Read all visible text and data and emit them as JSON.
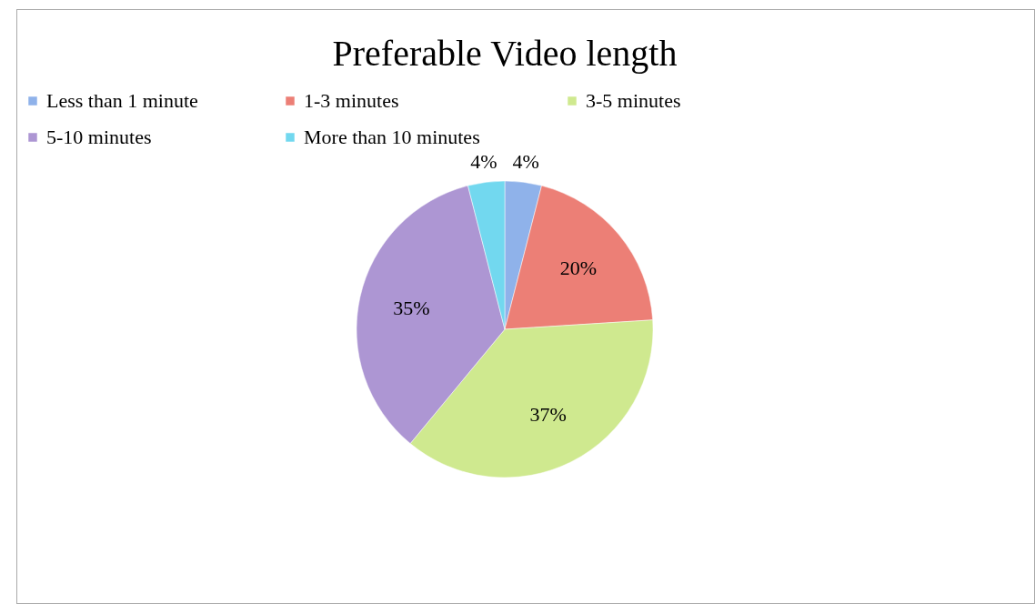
{
  "chart_data": {
    "type": "pie",
    "title": "Preferable Video length",
    "categories": [
      "Less than 1 minute",
      "1-3 minutes",
      "3-5 minutes",
      "5-10 minutes",
      "More than 10 minutes"
    ],
    "values": [
      4,
      20,
      37,
      35,
      4
    ],
    "colors": [
      "#8fb2ea",
      "#ec7f76",
      "#cfe98f",
      "#ad96d3",
      "#72d8ef"
    ],
    "legend": "top",
    "value_labels": [
      "4%",
      "20%",
      "37%",
      "35%",
      "4%"
    ]
  }
}
